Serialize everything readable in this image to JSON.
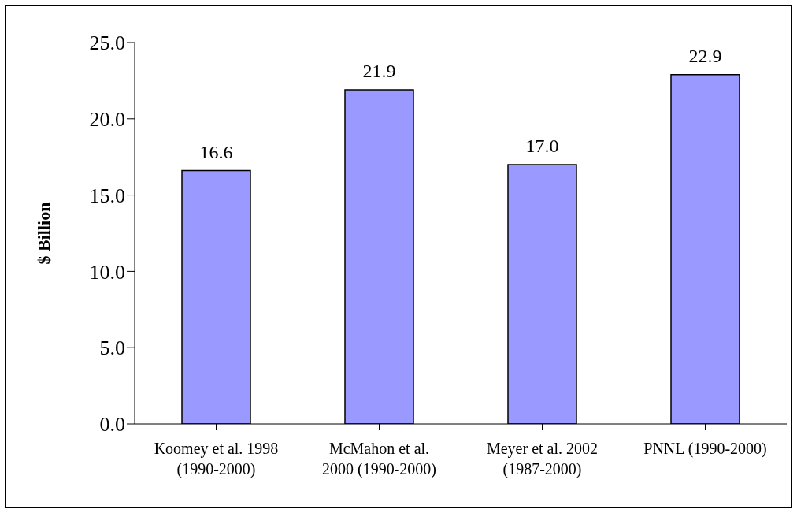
{
  "chart_data": {
    "type": "bar",
    "ylabel": "$ Billion",
    "categories": [
      "Koomey et al. 1998\n(1990-2000)",
      "McMahon et al.\n2000 (1990-2000)",
      "Meyer et al. 2002\n(1987-2000)",
      "PNNL (1990-2000)"
    ],
    "values": [
      16.6,
      21.9,
      17.0,
      22.9
    ],
    "color": "#9999ff",
    "ylim": [
      0,
      25
    ],
    "yticks": [
      {
        "value": 0,
        "label": "0.0"
      },
      {
        "value": 5,
        "label": "5.0"
      },
      {
        "value": 10,
        "label": "10.0"
      },
      {
        "value": 15,
        "label": "15.0"
      },
      {
        "value": 20,
        "label": "20.0"
      },
      {
        "value": 25,
        "label": "25.0"
      }
    ],
    "value_labels": [
      "16.6",
      "21.9",
      "17.0",
      "22.9"
    ],
    "grid": false,
    "legend": false
  }
}
